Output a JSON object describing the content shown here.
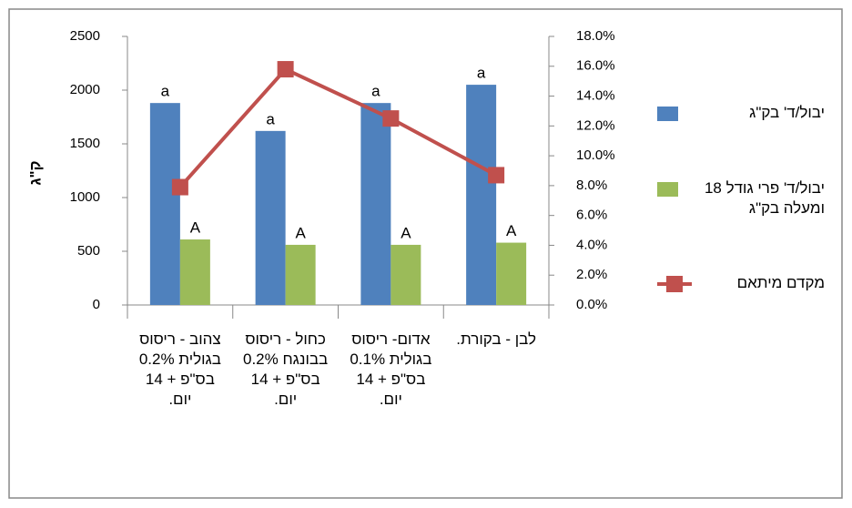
{
  "chart_data": {
    "type": "bar_line",
    "y_axis_label": "ק\"ג",
    "categories": [
      "צהוב - ריסוס בגולית 0.2% בס\"פ + 14 יום.",
      "כחול - ריסוס בבונגח 0.2% בס\"פ + 14 יום.",
      "אדום- ריסוס בגולית 0.1% בס\"פ + 14 יום.",
      "לבן - בקורת."
    ],
    "series": [
      {
        "name": "יבול/ד' בק\"ג",
        "type": "bar",
        "color": "#4f81bd",
        "values": [
          1880,
          1620,
          1880,
          2050
        ],
        "labels": [
          "a",
          "a",
          "a",
          "a"
        ]
      },
      {
        "name": "יבול/ד' פרי גודל 18 ומעלה בק\"ג",
        "type": "bar",
        "color": "#9bbb59",
        "values": [
          610,
          560,
          560,
          580
        ],
        "labels": [
          "A",
          "A",
          "A",
          "A"
        ]
      },
      {
        "name": "מקדם מיתאם",
        "type": "line",
        "axis": "y2",
        "color": "#c0504d",
        "values": [
          7.9,
          15.8,
          12.5,
          8.7
        ]
      }
    ],
    "ylim": [
      0,
      2500
    ],
    "yticks": [
      0,
      500,
      1000,
      1500,
      2000,
      2500
    ],
    "y2lim": [
      0,
      18
    ],
    "y2ticks": [
      {
        "value": 0,
        "label": "0.0%"
      },
      {
        "value": 2,
        "label": "2.0%"
      },
      {
        "value": 4,
        "label": "4.0%"
      },
      {
        "value": 6,
        "label": "6.0%"
      },
      {
        "value": 8,
        "label": "8.0%"
      },
      {
        "value": 10,
        "label": "10.0%"
      },
      {
        "value": 12,
        "label": "12.0%"
      },
      {
        "value": 14,
        "label": "14.0%"
      },
      {
        "value": 16,
        "label": "16.0%"
      },
      {
        "value": 18,
        "label": "18.0%"
      }
    ],
    "grid": false,
    "legend": "right"
  }
}
